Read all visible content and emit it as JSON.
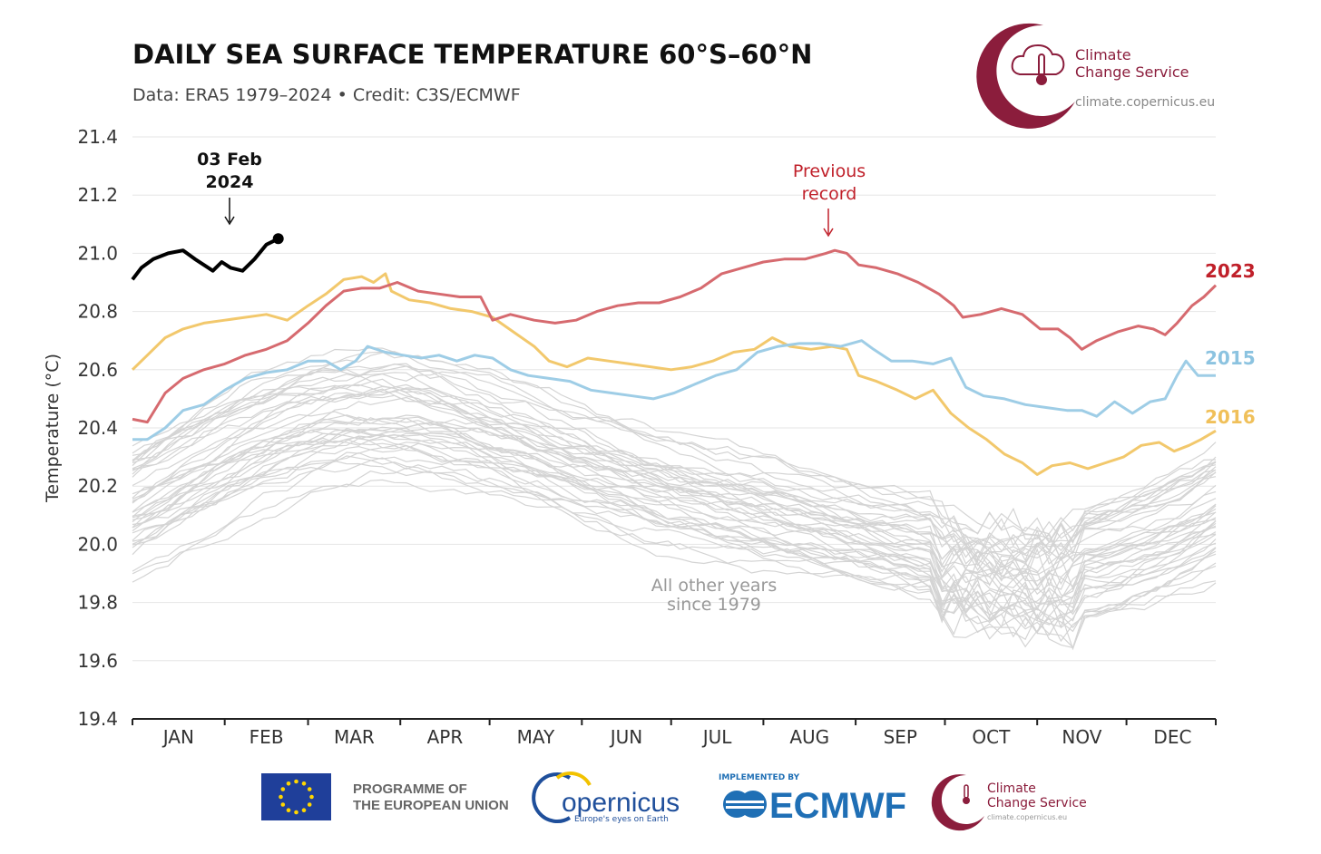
{
  "header": {
    "title": "DAILY SEA SURFACE TEMPERATURE 60°S–60°N",
    "subtitle": "Data: ERA5 1979–2024 • Credit: C3S/ECMWF"
  },
  "brand": {
    "line1": "Climate",
    "line2": "Change Service",
    "url": "climate.copernicus.eu",
    "color": "#8b1d3c"
  },
  "annotations": {
    "latest_line1": "03 Feb",
    "latest_line2": "2024",
    "record_line1": "Previous",
    "record_line2": "record",
    "others_line1": "All other years",
    "others_line2": "since 1979",
    "label_2023": "2023",
    "label_2015": "2015",
    "label_2016": "2016"
  },
  "footer": {
    "eu_line1": "PROGRAMME OF",
    "eu_line2": "THE EUROPEAN UNION",
    "copernicus_word": "opernicus",
    "copernicus_tagline": "Europe's eyes on Earth",
    "implemented_by": "IMPLEMENTED BY",
    "ecmwf": "ECMWF",
    "brand_line1": "Climate",
    "brand_line2": "Change Service",
    "brand_url": "climate.copernicus.eu"
  },
  "chart_data": {
    "type": "line",
    "ylabel": "Temperature (°C)",
    "ylim": [
      19.4,
      21.4
    ],
    "yticks": [
      "21.4",
      "21.2",
      "21.0",
      "20.8",
      "20.6",
      "20.4",
      "20.2",
      "20.0",
      "19.8",
      "19.6",
      "19.4"
    ],
    "xlim": [
      1,
      365
    ],
    "months": [
      "JAN",
      "FEB",
      "MAR",
      "APR",
      "MAY",
      "JUN",
      "JUL",
      "AUG",
      "SEP",
      "OCT",
      "NOV",
      "DEC"
    ],
    "grid": true,
    "colors": {
      "2024": "#000000",
      "2023": "#d66a6f",
      "2015": "#9ecde6",
      "2016": "#f2c86c",
      "other": "#d4d4d4",
      "record_annotation": "#c0202a",
      "label_2023": "#c0202a",
      "label_2015": "#8cc3e0",
      "label_2016": "#f0c05a",
      "others_annotation": "#999999"
    },
    "series": [
      {
        "name": "2024",
        "points": [
          [
            1,
            20.91
          ],
          [
            4,
            20.95
          ],
          [
            8,
            20.98
          ],
          [
            13,
            21.0
          ],
          [
            18,
            21.01
          ],
          [
            22,
            20.98
          ],
          [
            25,
            20.96
          ],
          [
            28,
            20.94
          ],
          [
            31,
            20.97
          ],
          [
            34,
            20.95
          ],
          [
            38,
            20.94
          ],
          [
            42,
            20.98
          ],
          [
            46,
            21.03
          ],
          [
            50,
            21.05
          ],
          [
            34,
            20.96
          ]
        ]
      },
      {
        "name": "2023",
        "points": [
          [
            1,
            20.43
          ],
          [
            6,
            20.42
          ],
          [
            12,
            20.52
          ],
          [
            18,
            20.57
          ],
          [
            25,
            20.6
          ],
          [
            32,
            20.62
          ],
          [
            39,
            20.65
          ],
          [
            46,
            20.67
          ],
          [
            53,
            20.7
          ],
          [
            60,
            20.76
          ],
          [
            66,
            20.82
          ],
          [
            72,
            20.87
          ],
          [
            78,
            20.88
          ],
          [
            84,
            20.88
          ],
          [
            90,
            20.9
          ],
          [
            97,
            20.87
          ],
          [
            104,
            20.86
          ],
          [
            111,
            20.85
          ],
          [
            118,
            20.85
          ],
          [
            122,
            20.77
          ],
          [
            128,
            20.79
          ],
          [
            136,
            20.77
          ],
          [
            143,
            20.76
          ],
          [
            150,
            20.77
          ],
          [
            157,
            20.8
          ],
          [
            164,
            20.82
          ],
          [
            171,
            20.83
          ],
          [
            178,
            20.83
          ],
          [
            185,
            20.85
          ],
          [
            192,
            20.88
          ],
          [
            199,
            20.93
          ],
          [
            206,
            20.95
          ],
          [
            213,
            20.97
          ],
          [
            220,
            20.98
          ],
          [
            227,
            20.98
          ],
          [
            234,
            21.0
          ],
          [
            237,
            21.01
          ],
          [
            241,
            21.0
          ],
          [
            245,
            20.96
          ],
          [
            251,
            20.95
          ],
          [
            258,
            20.93
          ],
          [
            265,
            20.9
          ],
          [
            272,
            20.86
          ],
          [
            277,
            20.82
          ],
          [
            280,
            20.78
          ],
          [
            286,
            20.79
          ],
          [
            293,
            20.81
          ],
          [
            300,
            20.79
          ],
          [
            306,
            20.74
          ],
          [
            312,
            20.74
          ],
          [
            316,
            20.71
          ],
          [
            320,
            20.67
          ],
          [
            325,
            20.7
          ],
          [
            332,
            20.73
          ],
          [
            339,
            20.75
          ],
          [
            344,
            20.74
          ],
          [
            348,
            20.72
          ],
          [
            352,
            20.76
          ],
          [
            357,
            20.82
          ],
          [
            361,
            20.85
          ],
          [
            365,
            20.89
          ]
        ]
      },
      {
        "name": "2015",
        "points": [
          [
            1,
            20.36
          ],
          [
            6,
            20.36
          ],
          [
            12,
            20.4
          ],
          [
            18,
            20.46
          ],
          [
            25,
            20.48
          ],
          [
            32,
            20.53
          ],
          [
            39,
            20.57
          ],
          [
            46,
            20.59
          ],
          [
            53,
            20.6
          ],
          [
            60,
            20.63
          ],
          [
            66,
            20.63
          ],
          [
            71,
            20.6
          ],
          [
            76,
            20.63
          ],
          [
            80,
            20.68
          ],
          [
            86,
            20.66
          ],
          [
            92,
            20.65
          ],
          [
            98,
            20.64
          ],
          [
            104,
            20.65
          ],
          [
            110,
            20.63
          ],
          [
            116,
            20.65
          ],
          [
            122,
            20.64
          ],
          [
            128,
            20.6
          ],
          [
            134,
            20.58
          ],
          [
            141,
            20.57
          ],
          [
            148,
            20.56
          ],
          [
            155,
            20.53
          ],
          [
            162,
            20.52
          ],
          [
            169,
            20.51
          ],
          [
            176,
            20.5
          ],
          [
            183,
            20.52
          ],
          [
            190,
            20.55
          ],
          [
            197,
            20.58
          ],
          [
            204,
            20.6
          ],
          [
            211,
            20.66
          ],
          [
            218,
            20.68
          ],
          [
            225,
            20.69
          ],
          [
            232,
            20.69
          ],
          [
            239,
            20.68
          ],
          [
            246,
            20.7
          ],
          [
            250,
            20.67
          ],
          [
            256,
            20.63
          ],
          [
            263,
            20.63
          ],
          [
            270,
            20.62
          ],
          [
            276,
            20.64
          ],
          [
            281,
            20.54
          ],
          [
            287,
            20.51
          ],
          [
            294,
            20.5
          ],
          [
            301,
            20.48
          ],
          [
            308,
            20.47
          ],
          [
            315,
            20.46
          ],
          [
            320,
            20.46
          ],
          [
            325,
            20.44
          ],
          [
            331,
            20.49
          ],
          [
            337,
            20.45
          ],
          [
            343,
            20.49
          ],
          [
            348,
            20.5
          ],
          [
            352,
            20.58
          ],
          [
            355,
            20.63
          ],
          [
            359,
            20.58
          ],
          [
            362,
            20.58
          ],
          [
            365,
            20.58
          ]
        ]
      },
      {
        "name": "2016",
        "points": [
          [
            1,
            20.6
          ],
          [
            6,
            20.65
          ],
          [
            12,
            20.71
          ],
          [
            18,
            20.74
          ],
          [
            25,
            20.76
          ],
          [
            32,
            20.77
          ],
          [
            39,
            20.78
          ],
          [
            46,
            20.79
          ],
          [
            53,
            20.77
          ],
          [
            60,
            20.82
          ],
          [
            66,
            20.86
          ],
          [
            72,
            20.91
          ],
          [
            78,
            20.92
          ],
          [
            82,
            20.9
          ],
          [
            86,
            20.93
          ],
          [
            88,
            20.87
          ],
          [
            94,
            20.84
          ],
          [
            101,
            20.83
          ],
          [
            108,
            20.81
          ],
          [
            115,
            20.8
          ],
          [
            122,
            20.78
          ],
          [
            129,
            20.73
          ],
          [
            136,
            20.68
          ],
          [
            141,
            20.63
          ],
          [
            147,
            20.61
          ],
          [
            154,
            20.64
          ],
          [
            161,
            20.63
          ],
          [
            168,
            20.62
          ],
          [
            175,
            20.61
          ],
          [
            182,
            20.6
          ],
          [
            189,
            20.61
          ],
          [
            196,
            20.63
          ],
          [
            203,
            20.66
          ],
          [
            210,
            20.67
          ],
          [
            216,
            20.71
          ],
          [
            222,
            20.68
          ],
          [
            229,
            20.67
          ],
          [
            236,
            20.68
          ],
          [
            241,
            20.67
          ],
          [
            245,
            20.58
          ],
          [
            251,
            20.56
          ],
          [
            258,
            20.53
          ],
          [
            264,
            20.5
          ],
          [
            270,
            20.53
          ],
          [
            276,
            20.45
          ],
          [
            282,
            20.4
          ],
          [
            288,
            20.36
          ],
          [
            294,
            20.31
          ],
          [
            300,
            20.28
          ],
          [
            305,
            20.24
          ],
          [
            310,
            20.27
          ],
          [
            316,
            20.28
          ],
          [
            322,
            20.26
          ],
          [
            328,
            20.28
          ],
          [
            334,
            20.3
          ],
          [
            340,
            20.34
          ],
          [
            346,
            20.35
          ],
          [
            351,
            20.32
          ],
          [
            356,
            20.34
          ],
          [
            360,
            20.36
          ],
          [
            365,
            20.39
          ]
        ]
      }
    ]
  }
}
